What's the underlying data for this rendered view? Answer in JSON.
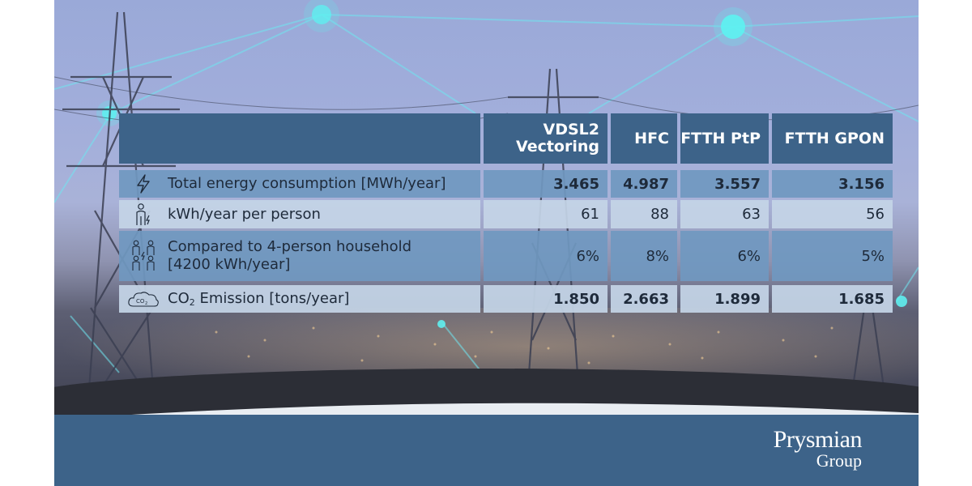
{
  "table": {
    "headers": [
      "",
      "VDSL2\nVectoring",
      "HFC",
      "FTTH PtP",
      "FTTH GPON"
    ],
    "rows": [
      {
        "icon": "lightning-icon",
        "label": "Total energy consumption [MWh/year]",
        "values": [
          "3.465",
          "4.987",
          "3.557",
          "3.156"
        ]
      },
      {
        "icon": "person-energy-icon",
        "label": "kWh/year per person",
        "values": [
          "61",
          "88",
          "63",
          "56"
        ]
      },
      {
        "icon": "household-icon",
        "label": "Compared to 4-person household\n[4200 kWh/year]",
        "values": [
          "6%",
          "8%",
          "6%",
          "5%"
        ]
      },
      {
        "icon": "co2-cloud-icon",
        "label_prefix": "CO",
        "label_subscript": "2",
        "label_suffix": " Emission [tons/year]",
        "values": [
          "1.850",
          "2.663",
          "1.899",
          "1.685"
        ]
      }
    ]
  },
  "brand": {
    "name": "Prysmian",
    "sub": "Group"
  },
  "colors": {
    "header": "#3d6389",
    "row_dark": "#7098c0",
    "row_light": "#c4d4e6",
    "footer": "#3d6389",
    "node_glow": "#5ff0f0"
  }
}
